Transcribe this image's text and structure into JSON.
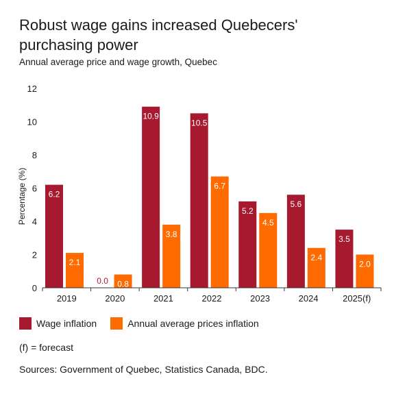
{
  "title": "Robust wage gains increased Quebecers' purchasing power",
  "subtitle": "Annual average price and wage growth, Quebec",
  "legend": {
    "wage": "Wage inflation",
    "prices": "Annual average prices inflation"
  },
  "note": "(f) = forecast",
  "source": "Sources: Government of Quebec, Statistics Canada, BDC.",
  "colors": {
    "wage": "#a6192e",
    "prices": "#ff6b00",
    "zero_label": "#a6192e"
  },
  "chart_data": {
    "type": "bar",
    "categories": [
      "2019",
      "2020",
      "2021",
      "2022",
      "2023",
      "2024",
      "2025(f)"
    ],
    "series": [
      {
        "name": "Wage inflation",
        "values": [
          6.2,
          0.0,
          10.9,
          10.5,
          5.2,
          5.6,
          3.5
        ]
      },
      {
        "name": "Annual average prices inflation",
        "values": [
          2.1,
          0.8,
          3.8,
          6.7,
          4.5,
          2.4,
          2.0
        ]
      }
    ],
    "value_labels": [
      [
        "6.2",
        "0.0",
        "10.9",
        "10.5",
        "5.2",
        "5.6",
        "3.5"
      ],
      [
        "2.1",
        "0.8",
        "3.8",
        "6.7",
        "4.5",
        "2.4",
        "2.0"
      ]
    ],
    "xlabel": "",
    "ylabel": "Percentage (%)",
    "ylim": [
      0,
      12
    ],
    "yticks": [
      "0",
      "2",
      "4",
      "6",
      "8",
      "10",
      "12"
    ],
    "grid": false,
    "legend_position": "bottom"
  }
}
